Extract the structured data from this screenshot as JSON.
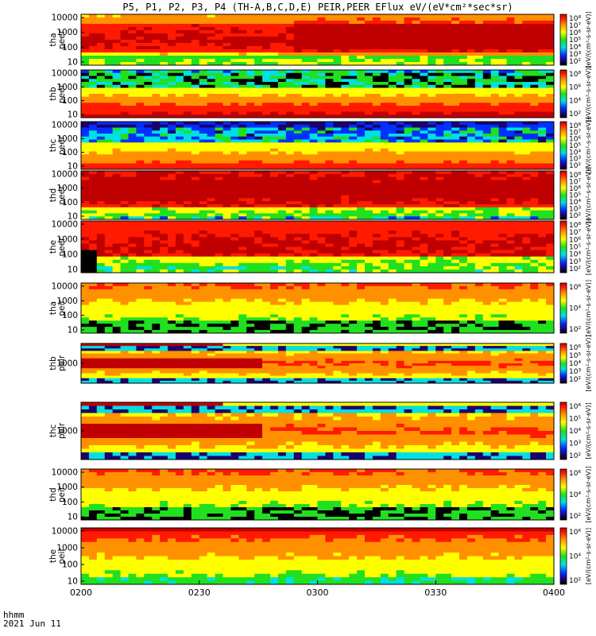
{
  "title": "P5, P1, P2, P3, P4 (TH-A,B,C,D,E) PEIR,PEER EFlux eV/(eV*cm²*sec*sr)",
  "time_axis": {
    "label": "hhmm",
    "date": "2021 Jun 11",
    "ticks": [
      "0200",
      "0230",
      "0300",
      "0330",
      "0400"
    ]
  },
  "chart_data": [
    {
      "type": "heatmap",
      "panel": "tha peer",
      "ylabel": [
        "tha",
        "peer"
      ],
      "yticks": [
        "10000",
        "1000",
        "100",
        "10"
      ],
      "yscale": "log",
      "cbar_ticks": [
        "10⁸",
        "10⁷",
        "10⁶",
        "10⁵",
        "10⁴",
        "10³",
        "10²"
      ],
      "cbar_label": "[eV/(cm²-s-sr-eV)]"
    },
    {
      "type": "heatmap",
      "panel": "thb peer",
      "ylabel": [
        "thb",
        "peer"
      ],
      "yticks": [
        "10000",
        "1000",
        "100",
        "10"
      ],
      "yscale": "log",
      "cbar_ticks": [
        "10⁸",
        "10⁶",
        "10⁴",
        "10²"
      ],
      "cbar_label": "[eV/(cm²-s-sr-eV)]"
    },
    {
      "type": "heatmap",
      "panel": "thc peer",
      "ylabel": [
        "thc",
        "peer"
      ],
      "yticks": [
        "10000",
        "1000",
        "100",
        "10"
      ],
      "yscale": "log",
      "cbar_ticks": [
        "10⁸",
        "10⁷",
        "10⁶",
        "10⁵",
        "10⁴",
        "10³",
        "10²"
      ],
      "cbar_label": "[eV/(cm²-s-sr-eV)]"
    },
    {
      "type": "heatmap",
      "panel": "thd peer",
      "ylabel": [
        "thd",
        "peer"
      ],
      "yticks": [
        "10000",
        "1000",
        "100",
        "10"
      ],
      "yscale": "log",
      "cbar_ticks": [
        "10⁸",
        "10⁷",
        "10⁶",
        "10⁵",
        "10⁴",
        "10³",
        "10²"
      ],
      "cbar_label": "[eV/(cm²-s-sr-eV)]"
    },
    {
      "type": "heatmap",
      "panel": "the peer",
      "ylabel": [
        "the",
        "peer"
      ],
      "yticks": [
        "10000",
        "1000",
        "100",
        "10"
      ],
      "yscale": "log",
      "cbar_ticks": [
        "10⁸",
        "10⁷",
        "10⁶",
        "10⁵",
        "10⁴",
        "10³",
        "10²"
      ],
      "cbar_label": "[eV/(cm²-s-sr-eV)]"
    },
    {
      "type": "heatmap",
      "panel": "tha peir",
      "ylabel": [
        "tha",
        "peir"
      ],
      "yticks": [
        "10000",
        "1000",
        "100",
        "10"
      ],
      "yscale": "log",
      "cbar_ticks": [
        "10⁶",
        "10⁴",
        "10²"
      ],
      "cbar_label": "[eV/(cm²-s-sr-eV)]"
    },
    {
      "type": "heatmap",
      "panel": "thb peir",
      "ylabel": [
        "thb",
        "peir"
      ],
      "yticks": [
        "1000"
      ],
      "yscale": "log",
      "cbar_ticks": [
        "10⁶",
        "10⁵",
        "10⁴",
        "10³",
        "10²"
      ],
      "cbar_label": "[eV/(cm²-s-sr-eV)]"
    },
    {
      "type": "heatmap",
      "panel": "thc peir",
      "ylabel": [
        "thc",
        "peir"
      ],
      "yticks": [
        "1000"
      ],
      "yscale": "log",
      "cbar_ticks": [
        "10⁶",
        "10⁵",
        "10⁴",
        "10³",
        "10²"
      ],
      "cbar_label": "[eV/(cm²-s-sr-eV)]"
    },
    {
      "type": "heatmap",
      "panel": "thd peir",
      "ylabel": [
        "thd",
        "peir"
      ],
      "yticks": [
        "10000",
        "1000",
        "100",
        "10"
      ],
      "yscale": "log",
      "cbar_ticks": [
        "10⁶",
        "10⁴",
        "10²"
      ],
      "cbar_label": "[eV/(cm²-s-sr-eV)]"
    },
    {
      "type": "heatmap",
      "panel": "the peir",
      "ylabel": [
        "the",
        "peir"
      ],
      "yticks": [
        "10000",
        "1000",
        "100",
        "10"
      ],
      "yscale": "log",
      "cbar_ticks": [
        "10⁶",
        "10⁴",
        "10²"
      ],
      "cbar_label": "[eV/(cm²-s-sr-eV)]"
    }
  ],
  "colors": {
    "black": "#000000",
    "navy": "#1a0070",
    "blue": "#0030ff",
    "cyan": "#00e0e0",
    "green": "#20e020",
    "yellow": "#ffff00",
    "orange": "#ff9000",
    "red": "#ff1a00",
    "darkred": "#c00000"
  }
}
